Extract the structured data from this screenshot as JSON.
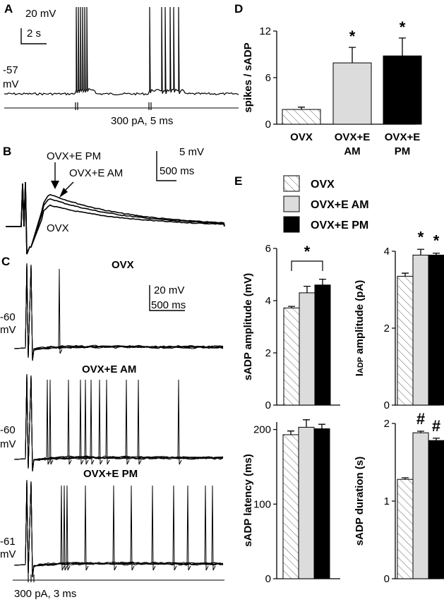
{
  "colors": {
    "ovx": "#ffffff",
    "ovx_e_am": "#dcdcdc",
    "ovx_e_pm": "#000000",
    "ink": "#000000"
  },
  "panels": {
    "A": {
      "label": "A",
      "scale_v": "20 mV",
      "scale_t": "2 s",
      "baseline": "-57",
      "baseline_unit": "mV",
      "stim": "300 pA, 5 ms"
    },
    "B": {
      "label": "B",
      "trace_pm": "OVX+E PM",
      "trace_am": "OVX+E AM",
      "trace_ovx": "OVX",
      "scale_v": "5 mV",
      "scale_t": "500 ms"
    },
    "C": {
      "label": "C",
      "title_1": "OVX",
      "title_2": "OVX+E AM",
      "title_3": "OVX+E PM",
      "scale_v": "20 mV",
      "scale_t": "500 ms",
      "v1": "-60",
      "u1": "mV",
      "v2": "-60",
      "u2": "mV",
      "v3": "-61",
      "u3": "mV",
      "stim": "300 pA, 3 ms"
    },
    "D": {
      "label": "D"
    },
    "E": {
      "label": "E",
      "legend": [
        "OVX",
        "OVX+E AM",
        "OVX+E PM"
      ]
    }
  },
  "chart_data": [
    {
      "id": "D",
      "type": "bar",
      "categories": [
        "OVX",
        "OVX+E AM",
        "OVX+E PM"
      ],
      "category_lines": [
        [
          "OVX"
        ],
        [
          "OVX+E",
          "AM"
        ],
        [
          "OVX+E",
          "PM"
        ]
      ],
      "values": [
        1.9,
        7.9,
        8.8
      ],
      "errors": [
        0.3,
        2.0,
        2.3
      ],
      "ylabel": "spikes / sADP",
      "ylim": [
        0,
        12
      ],
      "yticks": [
        "0",
        "6",
        "12"
      ],
      "significance": [
        "",
        "*",
        "*"
      ]
    },
    {
      "id": "E1",
      "type": "bar",
      "categories": [
        "OVX",
        "OVX+E AM",
        "OVX+E PM"
      ],
      "values": [
        3.72,
        4.3,
        4.6
      ],
      "errors": [
        0.06,
        0.25,
        0.22
      ],
      "ylabel": "sADP amplitude (mV)",
      "ylim": [
        0,
        6
      ],
      "yticks": [
        "0",
        "2",
        "4",
        "6"
      ],
      "significance_bracket": "*"
    },
    {
      "id": "E2",
      "type": "bar",
      "categories": [
        "OVX",
        "OVX+E AM",
        "OVX+E PM"
      ],
      "values": [
        3.35,
        3.9,
        3.9
      ],
      "errors": [
        0.08,
        0.15,
        0.05
      ],
      "ylabel_main": "I",
      "ylabel_sub": "ADP",
      "ylabel_rest": " amplitude (pA)",
      "ylim": [
        0,
        4
      ],
      "yticks": [
        "0",
        "2",
        "4"
      ],
      "significance": [
        "",
        "*",
        "*"
      ]
    },
    {
      "id": "E3",
      "type": "bar",
      "categories": [
        "OVX",
        "OVX+E AM",
        "OVX+E PM"
      ],
      "values": [
        193,
        203,
        201
      ],
      "errors": [
        5,
        10,
        6
      ],
      "ylabel": "sADP latency (ms)",
      "ylim": [
        0,
        210
      ],
      "yticks": [
        "0",
        "100",
        "200"
      ],
      "significance": [
        "",
        "",
        ""
      ]
    },
    {
      "id": "E4",
      "type": "bar",
      "categories": [
        "OVX",
        "OVX+E AM",
        "OVX+E PM"
      ],
      "values": [
        1.28,
        1.88,
        1.78
      ],
      "errors": [
        0.02,
        0.02,
        0.03
      ],
      "ylabel": "sADP duration (s)",
      "ylim": [
        0,
        2
      ],
      "yticks": [
        "0",
        "1",
        "2"
      ],
      "significance": [
        "",
        "#",
        "#"
      ]
    }
  ]
}
